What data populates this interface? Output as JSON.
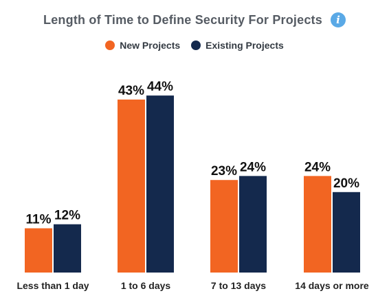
{
  "chart_data": {
    "type": "bar",
    "title": "Length of Time to Define Security For Projects",
    "categories": [
      "Less than 1 day",
      "1 to 6 days",
      "7 to 13 days",
      "14 days or more"
    ],
    "series": [
      {
        "name": "New Projects",
        "color": "#f26522",
        "values": [
          11,
          43,
          23,
          24
        ],
        "labels": [
          "11%",
          "43%",
          "23%",
          "24%"
        ]
      },
      {
        "name": "Existing Projects",
        "color": "#14294d",
        "values": [
          12,
          44,
          24,
          20
        ],
        "labels": [
          "12%",
          "44%",
          "24%",
          "20%"
        ]
      }
    ],
    "unit": "%",
    "ylim": [
      0,
      50
    ],
    "grid": false,
    "legend_position": "top-center"
  },
  "header": {
    "info_icon": "info-icon"
  }
}
